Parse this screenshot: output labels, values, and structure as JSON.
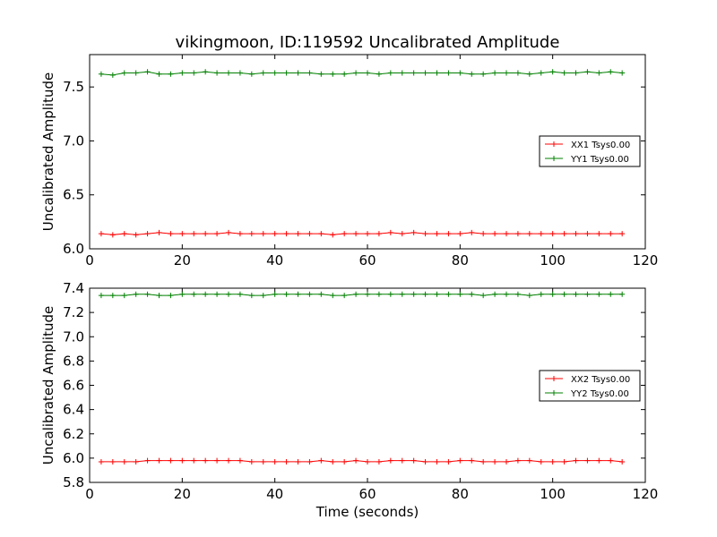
{
  "chart_data": [
    {
      "type": "line",
      "title": "vikingmoon, ID:119592 Uncalibrated Amplitude",
      "xlabel": "",
      "ylabel": "Uncalibrated Amplitude",
      "xlim": [
        0,
        120
      ],
      "ylim": [
        6.0,
        7.8
      ],
      "xticks": [
        "0",
        "20",
        "40",
        "60",
        "80",
        "100",
        "120"
      ],
      "yticks": [
        "6.0",
        "6.5",
        "7.0",
        "7.5"
      ],
      "ytick_values": [
        6.0,
        6.5,
        7.0,
        7.5
      ],
      "legend_position": "right",
      "grid": false,
      "x": [
        2.5,
        5.0,
        7.5,
        10.0,
        12.5,
        15.0,
        17.5,
        20.0,
        22.5,
        25.0,
        27.5,
        30.0,
        32.5,
        35.0,
        37.5,
        40.0,
        42.5,
        45.0,
        47.5,
        50.0,
        52.5,
        55.0,
        57.5,
        60.0,
        62.5,
        65.0,
        67.5,
        70.0,
        72.5,
        75.0,
        77.5,
        80.0,
        82.5,
        85.0,
        87.5,
        90.0,
        92.5,
        95.0,
        97.5,
        100.0,
        102.5,
        105.0,
        107.5,
        110.0,
        112.5,
        115.0
      ],
      "series": [
        {
          "name": "XX1 Tsys0.00",
          "color": "#ff0000",
          "values": [
            6.14,
            6.13,
            6.14,
            6.13,
            6.14,
            6.15,
            6.14,
            6.14,
            6.14,
            6.14,
            6.14,
            6.15,
            6.14,
            6.14,
            6.14,
            6.14,
            6.14,
            6.14,
            6.14,
            6.14,
            6.13,
            6.14,
            6.14,
            6.14,
            6.14,
            6.15,
            6.14,
            6.15,
            6.14,
            6.14,
            6.14,
            6.14,
            6.15,
            6.14,
            6.14,
            6.14,
            6.14,
            6.14,
            6.14,
            6.14,
            6.14,
            6.14,
            6.14,
            6.14,
            6.14,
            6.14
          ]
        },
        {
          "name": "YY1 Tsys0.00",
          "color": "#008000",
          "values": [
            7.62,
            7.61,
            7.63,
            7.63,
            7.64,
            7.62,
            7.62,
            7.63,
            7.63,
            7.64,
            7.63,
            7.63,
            7.63,
            7.62,
            7.63,
            7.63,
            7.63,
            7.63,
            7.63,
            7.62,
            7.62,
            7.62,
            7.63,
            7.63,
            7.62,
            7.63,
            7.63,
            7.63,
            7.63,
            7.63,
            7.63,
            7.63,
            7.62,
            7.62,
            7.63,
            7.63,
            7.63,
            7.62,
            7.63,
            7.64,
            7.63,
            7.63,
            7.64,
            7.63,
            7.64,
            7.63
          ]
        }
      ]
    },
    {
      "type": "line",
      "title": "",
      "xlabel": "Time (seconds)",
      "ylabel": "Uncalibrated Amplitude",
      "xlim": [
        0,
        120
      ],
      "ylim": [
        5.8,
        7.4
      ],
      "xticks": [
        "0",
        "20",
        "40",
        "60",
        "80",
        "100",
        "120"
      ],
      "yticks": [
        "5.8",
        "6.0",
        "6.2",
        "6.4",
        "6.6",
        "6.8",
        "7.0",
        "7.2",
        "7.4"
      ],
      "ytick_values": [
        5.8,
        6.0,
        6.2,
        6.4,
        6.6,
        6.8,
        7.0,
        7.2,
        7.4
      ],
      "legend_position": "right",
      "grid": false,
      "x": [
        2.5,
        5.0,
        7.5,
        10.0,
        12.5,
        15.0,
        17.5,
        20.0,
        22.5,
        25.0,
        27.5,
        30.0,
        32.5,
        35.0,
        37.5,
        40.0,
        42.5,
        45.0,
        47.5,
        50.0,
        52.5,
        55.0,
        57.5,
        60.0,
        62.5,
        65.0,
        67.5,
        70.0,
        72.5,
        75.0,
        77.5,
        80.0,
        82.5,
        85.0,
        87.5,
        90.0,
        92.5,
        95.0,
        97.5,
        100.0,
        102.5,
        105.0,
        107.5,
        110.0,
        112.5,
        115.0
      ],
      "series": [
        {
          "name": "XX2 Tsys0.00",
          "color": "#ff0000",
          "values": [
            5.97,
            5.97,
            5.97,
            5.97,
            5.98,
            5.98,
            5.98,
            5.98,
            5.98,
            5.98,
            5.98,
            5.98,
            5.98,
            5.97,
            5.97,
            5.97,
            5.97,
            5.97,
            5.97,
            5.98,
            5.97,
            5.97,
            5.98,
            5.97,
            5.97,
            5.98,
            5.98,
            5.98,
            5.97,
            5.97,
            5.97,
            5.98,
            5.98,
            5.97,
            5.97,
            5.97,
            5.98,
            5.98,
            5.97,
            5.97,
            5.97,
            5.98,
            5.98,
            5.98,
            5.98,
            5.97
          ]
        },
        {
          "name": "YY2 Tsys0.00",
          "color": "#008000",
          "values": [
            7.34,
            7.34,
            7.34,
            7.35,
            7.35,
            7.34,
            7.34,
            7.35,
            7.35,
            7.35,
            7.35,
            7.35,
            7.35,
            7.34,
            7.34,
            7.35,
            7.35,
            7.35,
            7.35,
            7.35,
            7.34,
            7.34,
            7.35,
            7.35,
            7.35,
            7.35,
            7.35,
            7.35,
            7.35,
            7.35,
            7.35,
            7.35,
            7.35,
            7.34,
            7.35,
            7.35,
            7.35,
            7.34,
            7.35,
            7.35,
            7.35,
            7.35,
            7.35,
            7.35,
            7.35,
            7.35
          ]
        }
      ]
    }
  ]
}
